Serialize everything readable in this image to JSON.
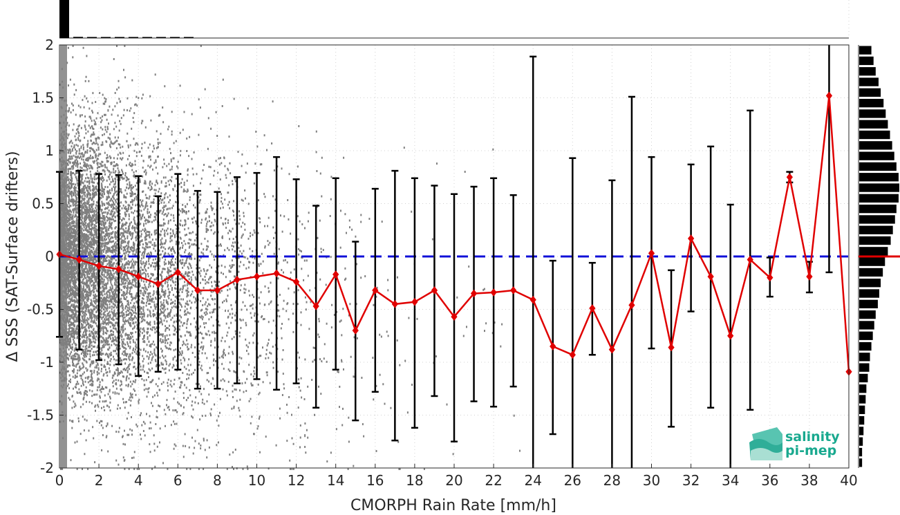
{
  "chart_data": {
    "type": "scatter",
    "xlabel": "CMORPH Rain Rate [mm/h]",
    "ylabel": "Δ SSS (SAT-Surface drifters)",
    "xlim": [
      0,
      40
    ],
    "ylim": [
      -2,
      2
    ],
    "x_ticks": [
      "0",
      "2",
      "4",
      "6",
      "8",
      "10",
      "12",
      "14",
      "16",
      "18",
      "20",
      "22",
      "24",
      "26",
      "28",
      "30",
      "32",
      "34",
      "36",
      "38",
      "40"
    ],
    "y_ticks": [
      "-2",
      "-1.5",
      "-1",
      "-0.5",
      "0",
      "0.5",
      "1",
      "1.5",
      "2"
    ],
    "grid": true,
    "reference_line": {
      "y": 0,
      "style": "dashed",
      "color": "#1010d8"
    },
    "series": [
      {
        "x": [
          0,
          1,
          2,
          3,
          4,
          5,
          6,
          7,
          8,
          9,
          10,
          11,
          12,
          13,
          14,
          15,
          16,
          17,
          18,
          19,
          20,
          21,
          22,
          23,
          24,
          25,
          26,
          27,
          28,
          29,
          30,
          31,
          32,
          33,
          34,
          35,
          36,
          37,
          38,
          39,
          40
        ],
        "y": [
          0.02,
          -0.03,
          -0.09,
          -0.12,
          -0.19,
          -0.26,
          -0.15,
          -0.32,
          -0.32,
          -0.22,
          -0.19,
          -0.16,
          -0.24,
          -0.47,
          -0.17,
          -0.7,
          -0.32,
          -0.45,
          -0.43,
          -0.32,
          -0.57,
          -0.35,
          -0.34,
          -0.32,
          -0.41,
          -0.85,
          -0.93,
          -0.49,
          -0.88,
          -0.46,
          0.03,
          -0.86,
          0.17,
          -0.19,
          -0.75,
          -0.03,
          -0.2,
          0.75,
          -0.19,
          1.52,
          -1.09
        ],
        "err_low": [
          -0.76,
          -0.88,
          -0.98,
          -1.02,
          -1.13,
          -1.09,
          -1.07,
          -1.25,
          -1.25,
          -1.2,
          -1.16,
          -1.26,
          -1.2,
          -1.43,
          -1.07,
          -1.55,
          -1.28,
          -1.74,
          -1.62,
          -1.32,
          -1.75,
          -1.37,
          -1.42,
          -1.23,
          -2.0,
          -1.68,
          -2.0,
          -0.93,
          -2.0,
          -2.0,
          -0.87,
          -1.61,
          -0.52,
          -1.43,
          -2.0,
          -1.45,
          -0.38,
          0.7,
          -0.34,
          -0.15,
          null
        ],
        "err_high": [
          0.8,
          0.81,
          0.78,
          0.77,
          0.76,
          0.57,
          0.78,
          0.62,
          0.61,
          0.75,
          0.79,
          0.94,
          0.73,
          0.48,
          0.74,
          0.14,
          0.64,
          0.81,
          0.74,
          0.67,
          0.59,
          0.66,
          0.74,
          0.58,
          1.89,
          -0.04,
          0.93,
          -0.06,
          0.72,
          1.51,
          0.94,
          -0.13,
          0.87,
          1.04,
          0.49,
          1.38,
          -0.01,
          0.8,
          -0.05,
          2.0,
          null
        ],
        "color": "#e00000"
      }
    ],
    "top_histogram": [
      100,
      3,
      1.6,
      0.9,
      0.5,
      0.3,
      0.2,
      0.15,
      0.1,
      0.05
    ],
    "right_histogram": {
      "bin_start": -2,
      "bin_width": 0.1,
      "mean_marker": 0,
      "counts": [
        4,
        4,
        5,
        6,
        7,
        8,
        9,
        10,
        12,
        14,
        15,
        17,
        19,
        21,
        23,
        26,
        28,
        30,
        33,
        36,
        40,
        44,
        47,
        50,
        52,
        55,
        56,
        55,
        52,
        49,
        46,
        43,
        40,
        37,
        34,
        30,
        27,
        23,
        20,
        17
      ]
    },
    "logo": {
      "line1": "salinity",
      "line2": "pi-mep"
    },
    "colors": {
      "scatter": "#7f7f7f",
      "mean_line": "#e00000",
      "error_bars": "#000000",
      "zero_line": "#1010d8",
      "logo": "#19a98f"
    }
  }
}
